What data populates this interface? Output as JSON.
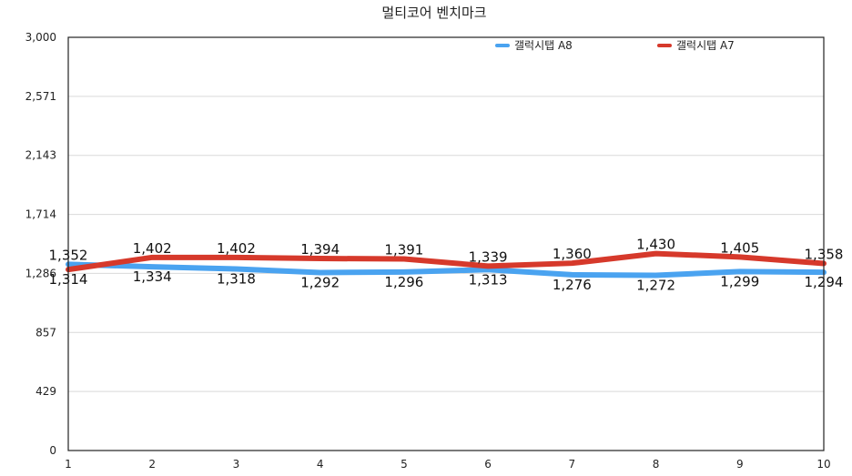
{
  "chart_data": {
    "type": "line",
    "title": "멀티코어 벤치마크",
    "xlabel": "",
    "ylabel": "",
    "x": [
      1,
      2,
      3,
      4,
      5,
      6,
      7,
      8,
      9,
      10
    ],
    "ylim": [
      0,
      3000
    ],
    "yticks": [
      "0",
      "429",
      "857",
      "1,286",
      "1,714",
      "2,143",
      "2,571",
      "3,000"
    ],
    "ytick_values": [
      0,
      429,
      857,
      1286,
      1714,
      2143,
      2571,
      3000
    ],
    "grid": true,
    "legend_position": "top-right",
    "series": [
      {
        "name": "갤럭시탭 A8",
        "color": "#4aa3f0",
        "values": [
          1352,
          1334,
          1318,
          1292,
          1296,
          1313,
          1276,
          1272,
          1299,
          1294
        ],
        "labels": [
          "1,352",
          "1,334",
          "1,318",
          "1,292",
          "1,296",
          "1,313",
          "1,276",
          "1,272",
          "1,299",
          "1,294"
        ]
      },
      {
        "name": "갤럭시탭 A7",
        "color": "#d6392b",
        "values": [
          1314,
          1402,
          1402,
          1394,
          1391,
          1339,
          1360,
          1430,
          1405,
          1358
        ],
        "labels": [
          "1,314",
          "1,402",
          "1,402",
          "1,394",
          "1,391",
          "1,339",
          "1,360",
          "1,430",
          "1,405",
          "1,358"
        ]
      }
    ]
  }
}
